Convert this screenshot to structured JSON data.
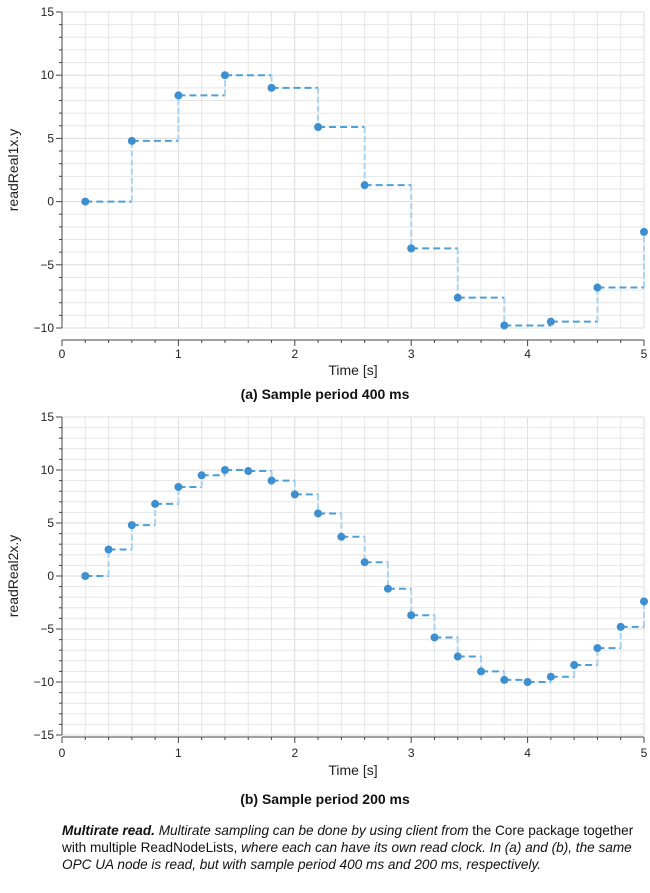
{
  "chart_data": [
    {
      "id": "chart-a",
      "type": "line",
      "step": true,
      "title": "(a)  Sample period 400 ms",
      "xlabel": "Time [s]",
      "ylabel": "readReal1x.y",
      "xlim": [
        0,
        5
      ],
      "ylim": [
        -10,
        15
      ],
      "xticks": [
        0,
        1,
        2,
        3,
        4,
        5
      ],
      "yticks": [
        -10,
        -5,
        0,
        5,
        10,
        15
      ],
      "grid": true,
      "colors": {
        "point": "#3d8fcf",
        "dash": "#4f9fd7",
        "riser": "#a9d3ee",
        "grid": "#e6e6e6",
        "axis": "#444444"
      },
      "x": [
        0.2,
        0.6,
        1.0,
        1.4,
        1.8,
        2.2,
        2.6,
        3.0,
        3.4,
        3.8,
        4.2,
        4.6,
        5.0
      ],
      "y": [
        0,
        4.8,
        8.4,
        10.0,
        9.0,
        5.9,
        1.3,
        -3.7,
        -7.6,
        -9.8,
        -9.5,
        -6.8,
        -2.4
      ]
    },
    {
      "id": "chart-b",
      "type": "line",
      "step": true,
      "title": "(b)  Sample period 200 ms",
      "xlabel": "Time [s]",
      "ylabel": "readReal2x.y",
      "xlim": [
        0,
        5
      ],
      "ylim": [
        -15,
        15
      ],
      "xticks": [
        0,
        1,
        2,
        3,
        4,
        5
      ],
      "yticks": [
        -15,
        -10,
        -5,
        0,
        5,
        10,
        15
      ],
      "grid": true,
      "colors": {
        "point": "#3d8fcf",
        "dash": "#4f9fd7",
        "riser": "#a9d3ee",
        "grid": "#e6e6e6",
        "axis": "#444444"
      },
      "x": [
        0.2,
        0.4,
        0.6,
        0.8,
        1.0,
        1.2,
        1.4,
        1.6,
        1.8,
        2.0,
        2.2,
        2.4,
        2.6,
        2.8,
        3.0,
        3.2,
        3.4,
        3.6,
        3.8,
        4.0,
        4.2,
        4.4,
        4.6,
        4.8,
        5.0
      ],
      "y": [
        0,
        2.5,
        4.8,
        6.8,
        8.4,
        9.5,
        10.0,
        9.9,
        9.0,
        7.7,
        5.9,
        3.7,
        1.3,
        -1.2,
        -3.7,
        -5.8,
        -7.6,
        -9.0,
        -9.8,
        -10.0,
        -9.5,
        -8.4,
        -6.8,
        -4.8,
        -2.4
      ]
    }
  ],
  "caption": {
    "bold": "Multirate read.",
    "part1": " Multirate sampling can be done by using client from ",
    "part2": "the Core package together with multiple ReadNodeLists,",
    "part3": " where each can have its own read clock. In (a) and (b), the same OPC UA node is read, but with sample period 400 ms and 200 ms, respectively."
  }
}
